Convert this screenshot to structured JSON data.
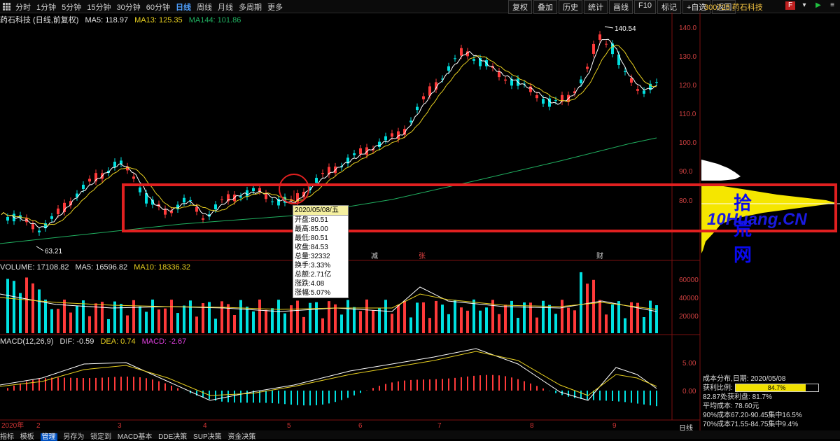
{
  "topbar": {
    "tabs": [
      "分时",
      "1分钟",
      "5分钟",
      "15分钟",
      "30分钟",
      "60分钟",
      "日线",
      "周线",
      "月线",
      "多周期",
      "更多"
    ],
    "active_tab": "日线",
    "tools": [
      "复权",
      "叠加",
      "历史",
      "统计",
      "画线",
      "F10",
      "标记",
      "+自选",
      "返回"
    ],
    "stock_code": "300725",
    "stock_name": "药石科技"
  },
  "main_info": {
    "title": "药石科技 (日线,前复权)",
    "ma5": "MA5: 118.97",
    "ma13": "MA13: 125.35",
    "ma144": "MA144: 101.86"
  },
  "price_axis": [
    "140.0",
    "130.0",
    "120.0",
    "110.0",
    "100.0",
    "90.0",
    "80.0"
  ],
  "price_labels": {
    "high": "140.54",
    "low": "63.21"
  },
  "markers": [
    "减",
    "张",
    "财"
  ],
  "volume_info": {
    "volume": "VOLUME: 17108.82",
    "ma5": "MA5: 16596.82",
    "ma10": "MA10: 18336.32"
  },
  "volume_axis": [
    "60000",
    "40000",
    "20000"
  ],
  "macd_info": {
    "title": "MACD(12,26,9)",
    "dif": "DIF: -0.59",
    "dea": "DEA: 0.74",
    "macd": "MACD: -2.67"
  },
  "macd_axis": [
    "5.00",
    "0.00"
  ],
  "x_axis": [
    "2020年",
    "2",
    "3",
    "4",
    "5",
    "6",
    "7",
    "8",
    "9"
  ],
  "tooltip": {
    "date": "2020/05/08/五",
    "open": "开盘:80.51",
    "high": "最高:85.00",
    "low": "最低:80.51",
    "close": "收盘:84.53",
    "volume": "总量:32332",
    "turnover": "换手:3.33%",
    "amount": "总额:2.71亿",
    "change": "涨跌:4.08",
    "pct": "涨幅:5.07%"
  },
  "watermark": {
    "title": "拾荒网",
    "sub": "10Huang.CN"
  },
  "chip_panel": {
    "title": "成本分布,日期: 2020/05/08",
    "profit_label": "获利比例:",
    "profit_value": "84.7%",
    "profit_fraction": 0.847,
    "profit_line": "82.87处获利盘: 81.7%",
    "avg_cost": "平均成本: 78.60元",
    "cost90": "90%成本67.20-90.45集中16.5%",
    "cost70": "70%成本71.55-84.75集中9.4%"
  },
  "bottombar": {
    "items": [
      "指标",
      "模板",
      "管理",
      "另存为",
      "锁定到",
      "MACD基本",
      "DDE决策",
      "SUP决策",
      "资金决策"
    ],
    "active": "管理",
    "period": "日线"
  },
  "colors": {
    "up": "#ff3a3a",
    "down": "#00e0e0",
    "ma5": "#ffffff",
    "ma13": "#e8d020",
    "ma144": "#20b060",
    "highlight_box": "#e02020"
  }
}
